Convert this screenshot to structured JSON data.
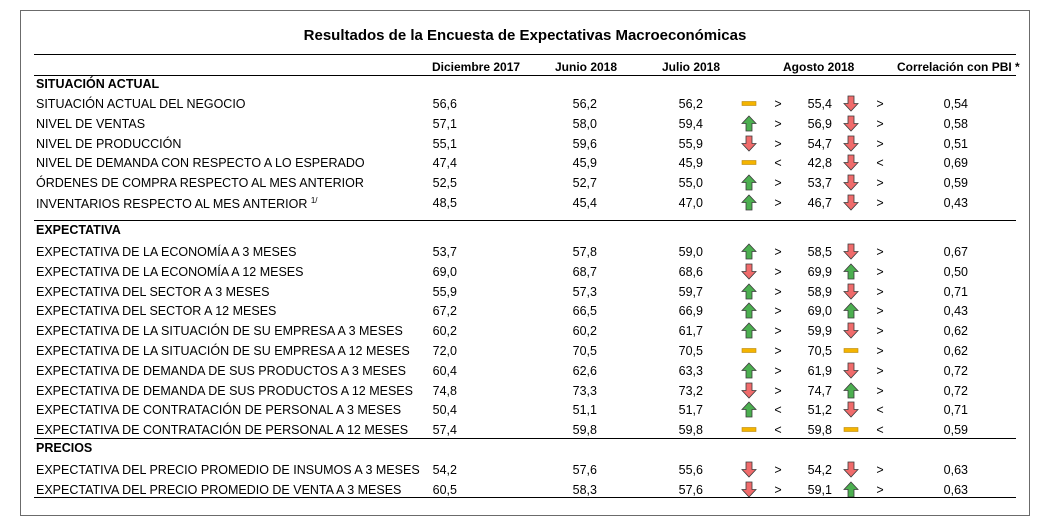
{
  "title": "Resultados de la Encuesta de Expectativas Macroeconómicas",
  "headers": {
    "dic2017": "Diciembre 2017",
    "jun2018": "Junio 2018",
    "jul2018": "Julio 2018",
    "ago2018": "Agosto 2018",
    "corr": "Correlación con PBI *"
  },
  "colors": {
    "up": "#4caf50",
    "down": "#f06b6b",
    "flat": "#f4b400",
    "outline": "#3a3a3a"
  },
  "sections": [
    {
      "title": "SITUACIÓN ACTUAL",
      "rows": [
        {
          "label": "SITUACIÓN ACTUAL DEL NEGOCIO",
          "sup": "",
          "dic": "56,6",
          "jun": "56,2",
          "jul": "56,2",
          "t1": "flat",
          "c1": ">",
          "ago": "55,4",
          "t2": "down",
          "c2": ">",
          "corr": "0,54"
        },
        {
          "label": "NIVEL DE VENTAS",
          "sup": "",
          "dic": "57,1",
          "jun": "58,0",
          "jul": "59,4",
          "t1": "up",
          "c1": ">",
          "ago": "56,9",
          "t2": "down",
          "c2": ">",
          "corr": "0,58"
        },
        {
          "label": "NIVEL DE PRODUCCIÓN",
          "sup": "",
          "dic": "55,1",
          "jun": "59,6",
          "jul": "55,9",
          "t1": "down",
          "c1": ">",
          "ago": "54,7",
          "t2": "down",
          "c2": ">",
          "corr": "0,51"
        },
        {
          "label": "NIVEL DE DEMANDA CON RESPECTO A LO ESPERADO",
          "sup": "",
          "dic": "47,4",
          "jun": "45,9",
          "jul": "45,9",
          "t1": "flat",
          "c1": "<",
          "ago": "42,8",
          "t2": "down",
          "c2": "<",
          "corr": "0,69"
        },
        {
          "label": "ÓRDENES DE COMPRA RESPECTO AL MES ANTERIOR",
          "sup": "",
          "dic": "52,5",
          "jun": "52,7",
          "jul": "55,0",
          "t1": "up",
          "c1": ">",
          "ago": "53,7",
          "t2": "down",
          "c2": ">",
          "corr": "0,59"
        },
        {
          "label": "INVENTARIOS RESPECTO AL MES ANTERIOR",
          "sup": "1/",
          "dic": "48,5",
          "jun": "45,4",
          "jul": "47,0",
          "t1": "up",
          "c1": ">",
          "ago": "46,7",
          "t2": "down",
          "c2": ">",
          "corr": "0,43"
        }
      ]
    },
    {
      "title": "EXPECTATIVA",
      "rows": [
        {
          "label": "EXPECTATIVA DE LA ECONOMÍA A 3 MESES",
          "sup": "",
          "dic": "53,7",
          "jun": "57,8",
          "jul": "59,0",
          "t1": "up",
          "c1": ">",
          "ago": "58,5",
          "t2": "down",
          "c2": ">",
          "corr": "0,67"
        },
        {
          "label": "EXPECTATIVA DE LA ECONOMÍA A 12 MESES",
          "sup": "",
          "dic": "69,0",
          "jun": "68,7",
          "jul": "68,6",
          "t1": "down",
          "c1": ">",
          "ago": "69,9",
          "t2": "up",
          "c2": ">",
          "corr": "0,50"
        },
        {
          "label": "EXPECTATIVA DEL SECTOR A 3 MESES",
          "sup": "",
          "dic": "55,9",
          "jun": "57,3",
          "jul": "59,7",
          "t1": "up",
          "c1": ">",
          "ago": "58,9",
          "t2": "down",
          "c2": ">",
          "corr": "0,71"
        },
        {
          "label": "EXPECTATIVA DEL SECTOR A 12 MESES",
          "sup": "",
          "dic": "67,2",
          "jun": "66,5",
          "jul": "66,9",
          "t1": "up",
          "c1": ">",
          "ago": "69,0",
          "t2": "up",
          "c2": ">",
          "corr": "0,43"
        },
        {
          "label": "EXPECTATIVA DE LA SITUACIÓN DE SU EMPRESA A 3 MESES",
          "sup": "",
          "dic": "60,2",
          "jun": "60,2",
          "jul": "61,7",
          "t1": "up",
          "c1": ">",
          "ago": "59,9",
          "t2": "down",
          "c2": ">",
          "corr": "0,62"
        },
        {
          "label": "EXPECTATIVA DE LA SITUACIÓN DE SU EMPRESA A 12 MESES",
          "sup": "",
          "dic": "72,0",
          "jun": "70,5",
          "jul": "70,5",
          "t1": "flat",
          "c1": ">",
          "ago": "70,5",
          "t2": "flat",
          "c2": ">",
          "corr": "0,62"
        },
        {
          "label": "EXPECTATIVA DE DEMANDA DE SUS PRODUCTOS A 3 MESES",
          "sup": "",
          "dic": "60,4",
          "jun": "62,6",
          "jul": "63,3",
          "t1": "up",
          "c1": ">",
          "ago": "61,9",
          "t2": "down",
          "c2": ">",
          "corr": "0,72"
        },
        {
          "label": "EXPECTATIVA DE DEMANDA DE SUS PRODUCTOS A 12 MESES",
          "sup": "",
          "dic": "74,8",
          "jun": "73,3",
          "jul": "73,2",
          "t1": "down",
          "c1": ">",
          "ago": "74,7",
          "t2": "up",
          "c2": ">",
          "corr": "0,72"
        },
        {
          "label": "EXPECTATIVA DE CONTRATACIÓN DE PERSONAL A 3 MESES",
          "sup": "",
          "dic": "50,4",
          "jun": "51,1",
          "jul": "51,7",
          "t1": "up",
          "c1": "<",
          "ago": "51,2",
          "t2": "down",
          "c2": "<",
          "corr": "0,71"
        },
        {
          "label": "EXPECTATIVA DE CONTRATACIÓN DE PERSONAL A 12 MESES",
          "sup": "",
          "dic": "57,4",
          "jun": "59,8",
          "jul": "59,8",
          "t1": "flat",
          "c1": "<",
          "ago": "59,8",
          "t2": "flat",
          "c2": "<",
          "corr": "0,59"
        }
      ]
    },
    {
      "title": "PRECIOS",
      "rows": [
        {
          "label": "EXPECTATIVA DEL PRECIO PROMEDIO DE INSUMOS A 3 MESES",
          "sup": "",
          "dic": "54,2",
          "jun": "57,6",
          "jul": "55,6",
          "t1": "down",
          "c1": ">",
          "ago": "54,2",
          "t2": "down",
          "c2": ">",
          "corr": "0,63"
        },
        {
          "label": "EXPECTATIVA DEL PRECIO PROMEDIO DE VENTA A 3 MESES",
          "sup": "",
          "dic": "60,5",
          "jun": "58,3",
          "jul": "57,6",
          "t1": "down",
          "c1": ">",
          "ago": "59,1",
          "t2": "up",
          "c2": ">",
          "corr": "0,63"
        }
      ]
    }
  ]
}
